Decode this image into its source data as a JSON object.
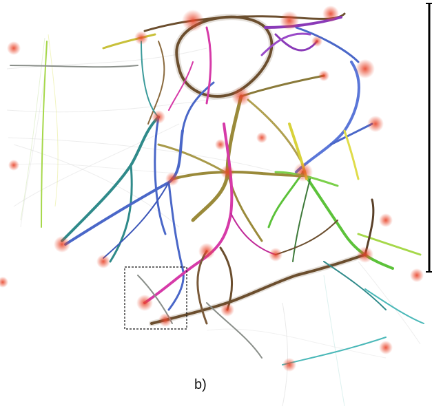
{
  "figure": {
    "panel_label": "b)"
  },
  "colors": {
    "node": "#e8452a",
    "brown": "#6b4e2e",
    "olive": "#9a8a3a",
    "teal": "#2f8a8a",
    "blue": "#4a67c8",
    "purple": "#8a3ab8",
    "magenta": "#d63aa8",
    "green": "#5cc23a",
    "yellow": "#d8d23a",
    "grey": "#8a8f8a",
    "cyan": "#4ab8b8",
    "lightgreen": "#a6d84a",
    "darkgreen": "#3e7a3a"
  },
  "icons": {
    "zoom_box": "dashed-rectangle",
    "scale_bar": "vertical-bar"
  }
}
